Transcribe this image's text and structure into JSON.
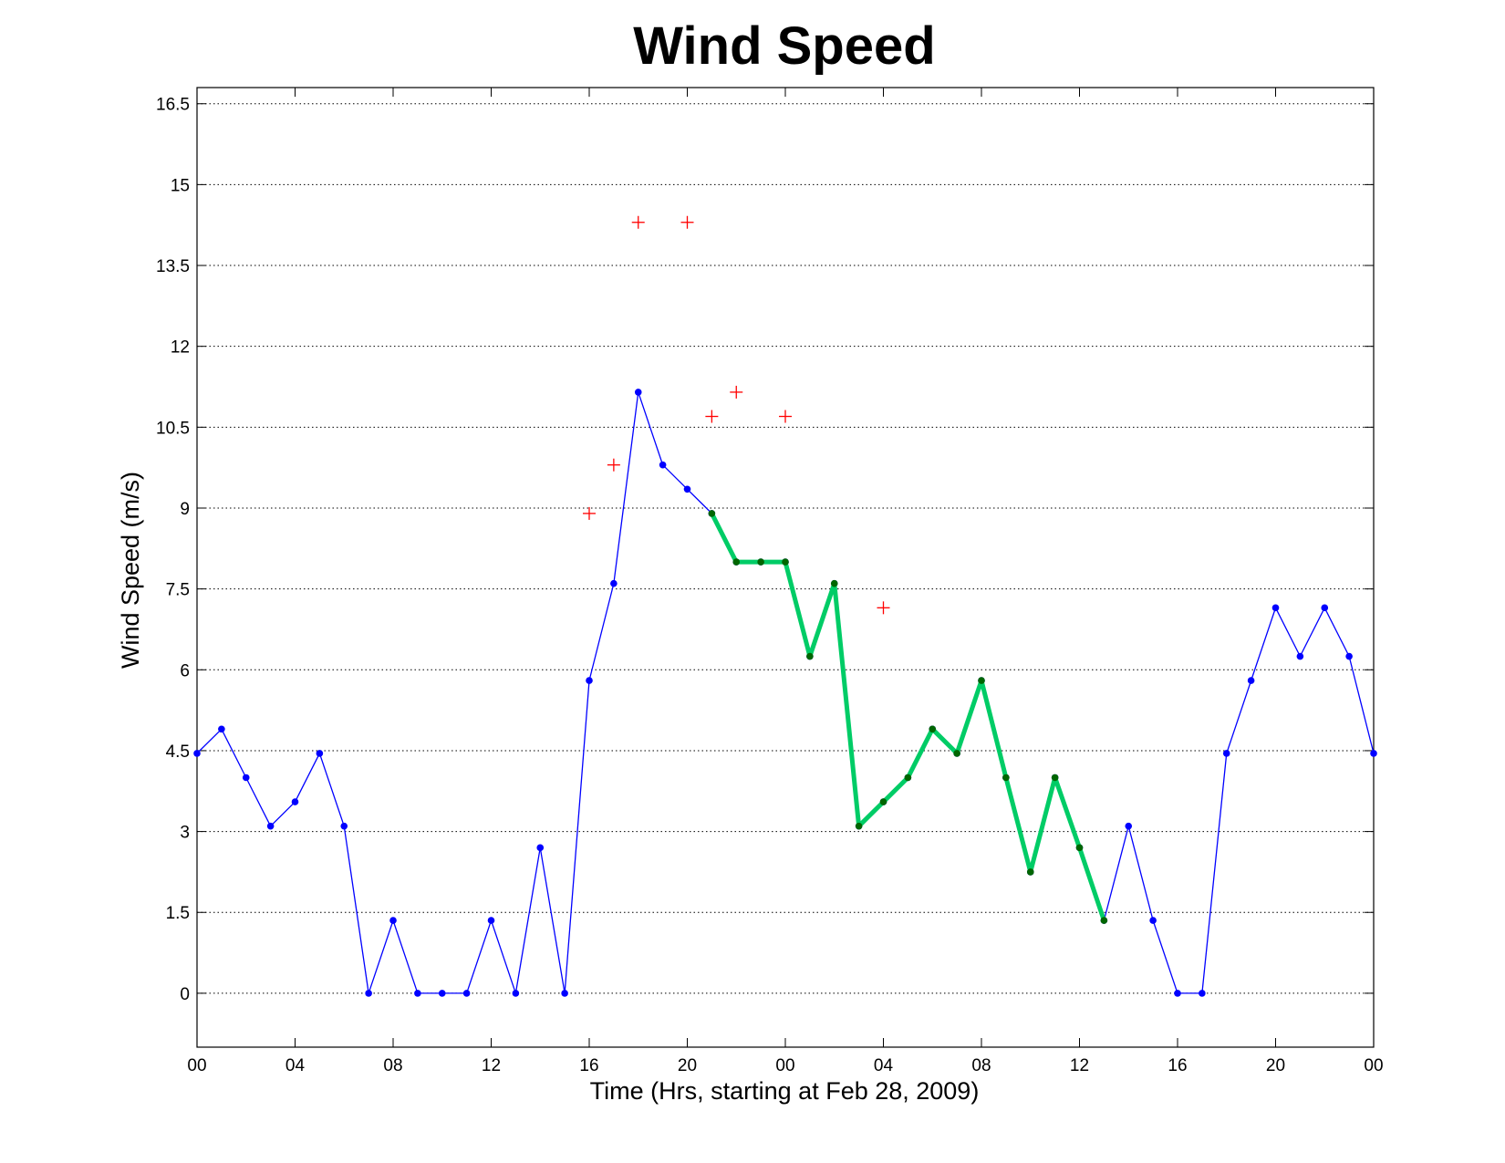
{
  "chart_data": {
    "type": "line",
    "title": "Wind Speed",
    "xlabel": "Time (Hrs, starting at Feb 28, 2009)",
    "ylabel": "Wind Speed (m/s)",
    "x_unit": "hours",
    "xlim": [
      0,
      48
    ],
    "ylim": [
      -1,
      16.8
    ],
    "grid": "horizontal dotted",
    "x_ticks": [
      0,
      4,
      8,
      12,
      16,
      20,
      24,
      28,
      32,
      36,
      40,
      44,
      48
    ],
    "x_tick_labels": [
      "00",
      "04",
      "08",
      "12",
      "16",
      "20",
      "00",
      "04",
      "08",
      "12",
      "16",
      "20",
      "00"
    ],
    "y_ticks": [
      0,
      1.5,
      3,
      4.5,
      6,
      7.5,
      9,
      10.5,
      12,
      13.5,
      15,
      16.5
    ],
    "y_tick_labels": [
      "0",
      "1.5",
      "3",
      "4.5",
      "6",
      "7.5",
      "9",
      "10.5",
      "12",
      "13.5",
      "15",
      "16.5"
    ],
    "series": [
      {
        "role": "wind-speed-line",
        "style": "thin blue line with dot markers",
        "color": "#0000ff",
        "x": [
          0,
          1,
          2,
          3,
          4,
          5,
          6,
          7,
          8,
          9,
          10,
          11,
          12,
          13,
          14,
          15,
          16,
          17,
          18,
          19,
          20,
          21,
          22,
          23,
          24,
          25,
          26,
          27,
          28,
          29,
          30,
          31,
          32,
          33,
          34,
          35,
          36,
          37,
          38,
          39,
          40,
          41,
          42,
          43,
          44,
          45,
          46,
          47,
          48
        ],
        "y": [
          4.45,
          4.9,
          4.0,
          3.1,
          3.55,
          4.45,
          3.1,
          0,
          1.35,
          0,
          0,
          0,
          1.35,
          0,
          2.7,
          0,
          5.8,
          7.6,
          11.15,
          9.8,
          9.35,
          8.9,
          8.0,
          8.0,
          8.0,
          6.25,
          7.6,
          3.1,
          3.55,
          4.0,
          4.9,
          4.45,
          5.8,
          4.0,
          2.25,
          4.0,
          2.7,
          1.35,
          3.1,
          1.35,
          0,
          0,
          4.45,
          5.8,
          7.15,
          6.25,
          7.15,
          6.25,
          4.45
        ]
      },
      {
        "role": "highlighted-segment",
        "style": "thick green line with dark green dot markers",
        "color": "#00cc66",
        "marker_color": "#006600",
        "x": [
          21,
          22,
          23,
          24,
          25,
          26,
          27,
          28,
          29,
          30,
          31,
          32,
          33,
          34,
          35,
          36,
          37
        ],
        "y": [
          8.9,
          8.0,
          8.0,
          8.0,
          6.25,
          7.6,
          3.1,
          3.55,
          4.0,
          4.9,
          4.45,
          5.8,
          4.0,
          2.25,
          4.0,
          2.7,
          1.35
        ]
      },
      {
        "role": "gust-markers",
        "style": "red plus markers",
        "color": "#ff0000",
        "type": "scatter",
        "x": [
          16,
          17,
          18,
          20,
          21,
          22,
          24,
          28
        ],
        "y": [
          8.9,
          9.8,
          14.3,
          14.3,
          10.7,
          11.15,
          10.7,
          7.15
        ]
      }
    ]
  }
}
